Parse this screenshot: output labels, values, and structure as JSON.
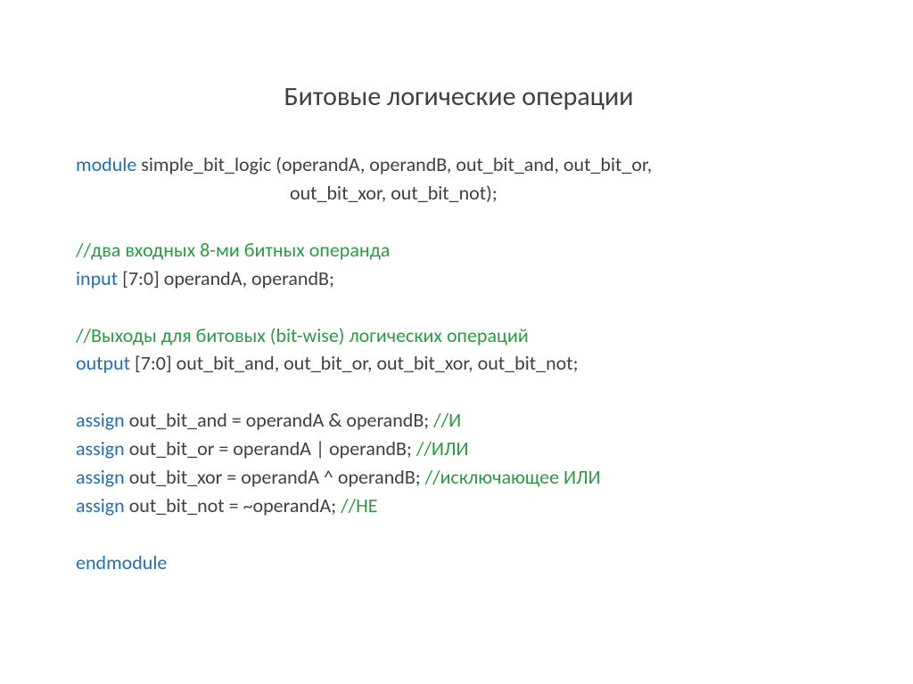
{
  "colors": {
    "background": "#ffffff",
    "text": "#404040",
    "keyword": "#1f6fb3",
    "comment": "#2e9a47"
  },
  "typography": {
    "title_fontsize": 30,
    "code_fontsize": 22,
    "font_family": "Calibri"
  },
  "title": "Битовые логические операции",
  "code": {
    "l1_kw": "module",
    "l1_txt": " simple_bit_logic (operandA, operandB, out_bit_and, out_bit_or,",
    "l2_txt": "out_bit_xor, out_bit_not);",
    "l3_cm": "//два входных 8-ми битных операнда",
    "l4_kw": "input",
    "l4_txt": " [7:0] operandA, operandB;",
    "l5_cm": "//Выходы для битовых (bit-wise) логических операций",
    "l6_kw": "output",
    "l6_txt": " [7:0] out_bit_and, out_bit_or, out_bit_xor, out_bit_not;",
    "l7_kw": "assign",
    "l7_txt": " out_bit_and = operandA & operandB; ",
    "l7_cm": "//И",
    "l8_kw": "assign",
    "l8_txt": " out_bit_or  = operandA | operandB; ",
    "l8_cm": "//ИЛИ",
    "l9_kw": "assign",
    "l9_txt": " out_bit_xor = operandA ^ operandB; ",
    "l9_cm": "//исключающее ИЛИ",
    "l10_kw": "assign",
    "l10_txt": " out_bit_not = ~operandA; ",
    "l10_cm": "//НЕ",
    "l11_kw": "endmodule"
  }
}
